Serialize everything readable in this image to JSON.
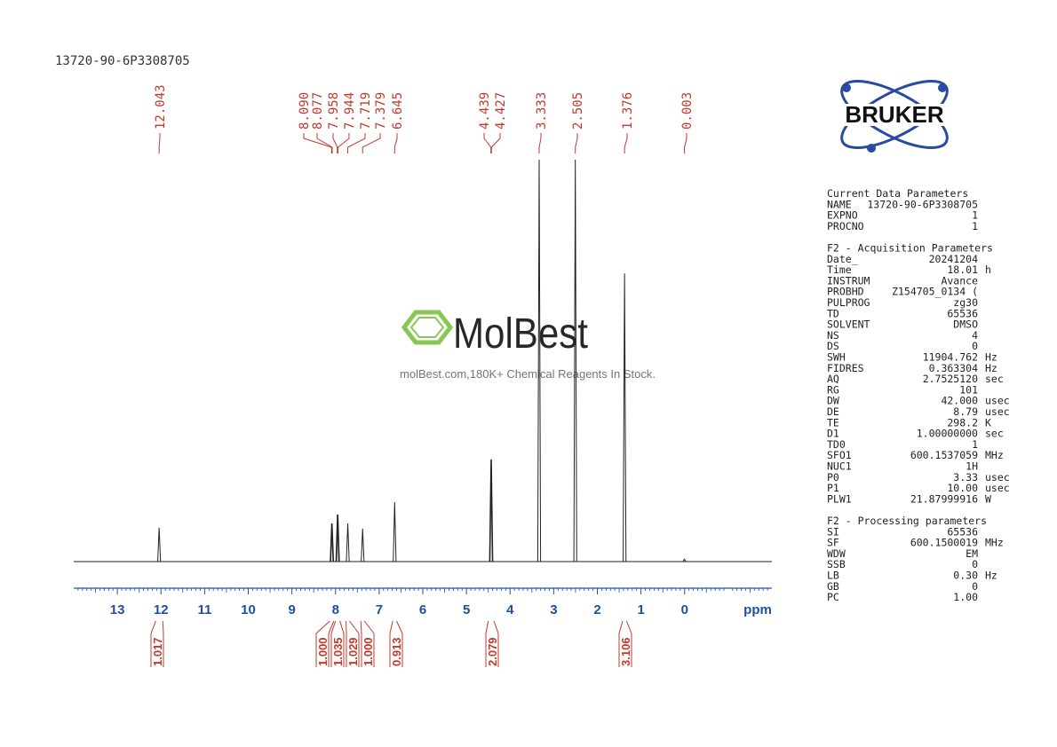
{
  "sample_id": "13720-90-6P3308705",
  "chart_data": {
    "type": "nmr",
    "xlabel": "ppm",
    "xlim": [
      14,
      -2
    ],
    "xticks": [
      13,
      12,
      11,
      10,
      9,
      8,
      7,
      6,
      5,
      4,
      3,
      2,
      1,
      0
    ],
    "ylim": [
      0,
      100
    ],
    "peaks": [
      {
        "value": 12.043,
        "label": "12.043",
        "height": 8.4
      },
      {
        "value": 8.09,
        "label": "8.090",
        "height": 9.5
      },
      {
        "value": 8.077,
        "label": "8.077",
        "height": 9.5
      },
      {
        "value": 7.958,
        "label": "7.958",
        "height": 11.7
      },
      {
        "value": 7.944,
        "label": "7.944",
        "height": 11.7
      },
      {
        "value": 7.719,
        "label": "7.719",
        "height": 9.5
      },
      {
        "value": 7.379,
        "label": "7.379",
        "height": 8.2
      },
      {
        "value": 6.645,
        "label": "6.645",
        "height": 14.8
      },
      {
        "value": 4.439,
        "label": "4.439",
        "height": 25.4
      },
      {
        "value": 4.427,
        "label": "4.427",
        "height": 25.4
      },
      {
        "value": 3.333,
        "label": "3.333",
        "height": 100
      },
      {
        "value": 2.505,
        "label": "2.505",
        "height": 100
      },
      {
        "value": 1.376,
        "label": "1.376",
        "height": 71.7
      },
      {
        "value": 0.003,
        "label": "0.003",
        "height": 0.6
      }
    ],
    "integrals": [
      {
        "value": 1.017,
        "label": "1.017",
        "range": [
          12.12,
          11.96
        ]
      },
      {
        "value": 1,
        "label": "1.000",
        "range": [
          8.13,
          8.04
        ]
      },
      {
        "value": 1.035,
        "label": "1.035",
        "range": [
          8.0,
          7.9
        ]
      },
      {
        "value": 1.029,
        "label": "1.029",
        "range": [
          7.76,
          7.68
        ]
      },
      {
        "value": 1,
        "label": "1.000",
        "range": [
          7.42,
          7.34
        ]
      },
      {
        "value": 0.913,
        "label": "0.913",
        "range": [
          6.69,
          6.6
        ]
      },
      {
        "value": 2.079,
        "label": "2.079",
        "range": [
          4.5,
          4.37
        ]
      },
      {
        "value": 3.106,
        "label": "3.106",
        "range": [
          1.42,
          1.33
        ]
      }
    ]
  },
  "logo": "BRUKER",
  "watermark": {
    "brand": "MolBest",
    "tagline": "molBest.com,180K+ Chemical Reagents In Stock."
  },
  "parameters": [
    {
      "heading": "Current Data Parameters",
      "rows": [
        [
          "NAME",
          "13720-90-6P3308705",
          ""
        ],
        [
          "EXPNO",
          "1",
          ""
        ],
        [
          "PROCNO",
          "1",
          ""
        ]
      ]
    },
    {
      "heading": "F2 - Acquisition Parameters",
      "rows": [
        [
          "Date_",
          "20241204",
          ""
        ],
        [
          "Time",
          "18.01",
          "h"
        ],
        [
          "INSTRUM",
          "Avance",
          ""
        ],
        [
          "PROBHD",
          "Z154705_0134 (",
          ""
        ],
        [
          "PULPROG",
          "zg30",
          ""
        ],
        [
          "TD",
          "65536",
          ""
        ],
        [
          "SOLVENT",
          "DMSO",
          ""
        ],
        [
          "NS",
          "4",
          ""
        ],
        [
          "DS",
          "0",
          ""
        ],
        [
          "SWH",
          "11904.762",
          "Hz"
        ],
        [
          "FIDRES",
          "0.363304",
          "Hz"
        ],
        [
          "AQ",
          "2.7525120",
          "sec"
        ],
        [
          "RG",
          "101",
          ""
        ],
        [
          "DW",
          "42.000",
          "usec"
        ],
        [
          "DE",
          "8.79",
          "usec"
        ],
        [
          "TE",
          "298.2",
          "K"
        ],
        [
          "D1",
          "1.00000000",
          "sec"
        ],
        [
          "TD0",
          "1",
          ""
        ],
        [
          "SFO1",
          "600.1537059",
          "MHz"
        ],
        [
          "NUC1",
          "1H",
          ""
        ],
        [
          "P0",
          "3.33",
          "usec"
        ],
        [
          "P1",
          "10.00",
          "usec"
        ],
        [
          "PLW1",
          "21.87999916",
          "W"
        ]
      ]
    },
    {
      "heading": "F2 - Processing parameters",
      "rows": [
        [
          "SI",
          "65536",
          ""
        ],
        [
          "SF",
          "600.1500019",
          "MHz"
        ],
        [
          "WDW",
          "EM",
          ""
        ],
        [
          "SSB",
          "0",
          ""
        ],
        [
          "LB",
          "0.30",
          "Hz"
        ],
        [
          "GB",
          "0",
          ""
        ],
        [
          "PC",
          "1.00",
          ""
        ]
      ]
    }
  ]
}
